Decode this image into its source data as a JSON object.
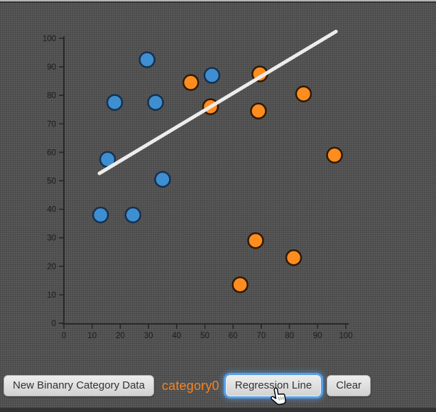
{
  "chart_data": {
    "type": "scatter",
    "title": "",
    "xlabel": "",
    "ylabel": "",
    "xlim": [
      0,
      100
    ],
    "ylim": [
      0,
      100
    ],
    "xticks": [
      0,
      10,
      20,
      30,
      40,
      50,
      60,
      70,
      80,
      90,
      100
    ],
    "yticks": [
      0,
      10,
      20,
      30,
      40,
      50,
      60,
      70,
      80,
      90,
      100
    ],
    "grid": false,
    "legend": "none",
    "axis_color": "#262626",
    "tick_label_color": "#1c1c1c",
    "point_radius": 10.5,
    "series": [
      {
        "name": "category-blue",
        "color": "#3d8fd1",
        "stroke": "#17304e",
        "points": [
          [
            29.5,
            92.5
          ],
          [
            18,
            77.5
          ],
          [
            32.5,
            77.5
          ],
          [
            52.5,
            87
          ],
          [
            15.5,
            57.5
          ],
          [
            35,
            50.5
          ],
          [
            13,
            38
          ],
          [
            24.5,
            38
          ]
        ]
      },
      {
        "name": "category-orange",
        "color": "#ff8c1f",
        "stroke": "#2e1a04",
        "points": [
          [
            45,
            84.5
          ],
          [
            52,
            76
          ],
          [
            69.5,
            87.5
          ],
          [
            69,
            74.5
          ],
          [
            85,
            80.5
          ],
          [
            96,
            59
          ],
          [
            68,
            29
          ],
          [
            81.5,
            23
          ],
          [
            62.5,
            13.5
          ]
        ]
      }
    ],
    "regression_line": {
      "color": "#ededed",
      "width": 5,
      "x1": 12.6,
      "y1": 52.6,
      "x2": 96.5,
      "y2": 102.4
    }
  },
  "toolbar": {
    "new_data_button": "New Binanry Category Data",
    "category_label": "category0",
    "category_color": "#f5831f",
    "regression_button": "Regression Line",
    "clear_button": "Clear"
  },
  "cursor": {
    "name": "hand-pointer"
  }
}
